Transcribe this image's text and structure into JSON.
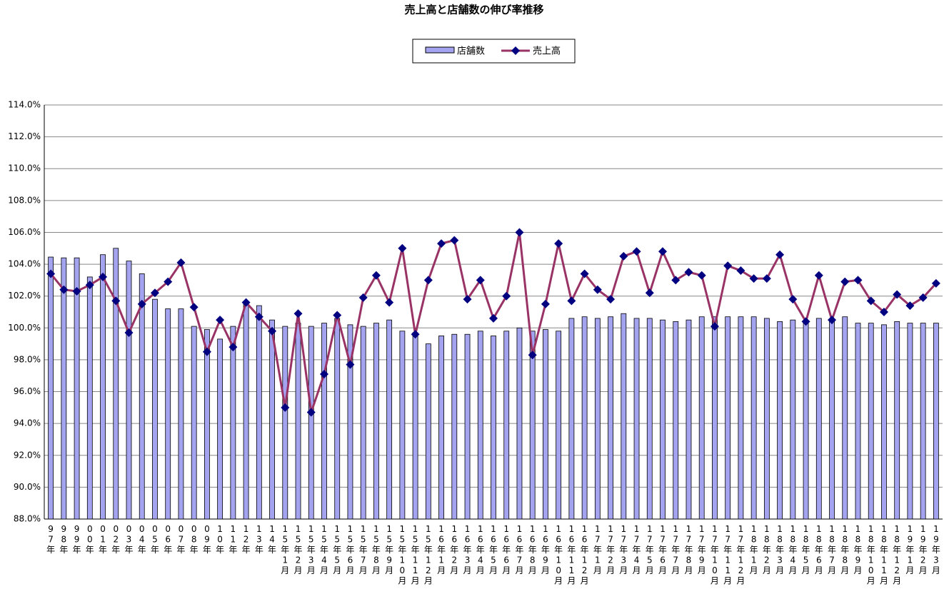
{
  "chart_data": {
    "type": "bar",
    "title": "売上高と店舗数の伸び率推移",
    "categories": [
      "97年",
      "98年",
      "99年",
      "00年",
      "01年",
      "02年",
      "03年",
      "04年",
      "05年",
      "06年",
      "07年",
      "08年",
      "09年",
      "10年",
      "11年",
      "12年",
      "13年",
      "14年",
      "15年1月",
      "15年2月",
      "15年3月",
      "15年4月",
      "15年5月",
      "15年6月",
      "15年7月",
      "15年8月",
      "15年9月",
      "15年10月",
      "15年11月",
      "15年12月",
      "16年1月",
      "16年2月",
      "16年3月",
      "16年4月",
      "16年5月",
      "16年6月",
      "16年7月",
      "16年8月",
      "16年9月",
      "16年10月",
      "16年11月",
      "16年12月",
      "17年1月",
      "17年2月",
      "17年3月",
      "17年4月",
      "17年5月",
      "17年6月",
      "17年7月",
      "17年8月",
      "17年9月",
      "17年10月",
      "17年11月",
      "17年12月",
      "18年1月",
      "18年2月",
      "18年3月",
      "18年4月",
      "18年5月",
      "18年6月",
      "18年7月",
      "18年8月",
      "18年9月",
      "18年10月",
      "18年11月",
      "18年12月",
      "19年1月",
      "19年2月",
      "19年3月"
    ],
    "series": [
      {
        "name": "店舗数",
        "type": "bar",
        "color": "#a3a3f0",
        "values": [
          104.45,
          104.4,
          104.4,
          103.2,
          104.6,
          105.0,
          104.2,
          103.4,
          101.8,
          101.2,
          101.2,
          100.1,
          99.9,
          99.3,
          100.1,
          101.6,
          101.4,
          100.5,
          100.1,
          100.3,
          100.1,
          100.3,
          100.6,
          100.2,
          100.1,
          100.3,
          100.5,
          99.8,
          99.7,
          99.0,
          99.5,
          99.6,
          99.6,
          99.8,
          99.5,
          99.8,
          100.0,
          99.8,
          99.9,
          99.8,
          100.6,
          100.7,
          100.6,
          100.7,
          100.9,
          100.6,
          100.6,
          100.5,
          100.4,
          100.5,
          100.7,
          100.7,
          100.7,
          100.7,
          100.7,
          100.6,
          100.4,
          100.5,
          100.4,
          100.6,
          100.5,
          100.7,
          100.3,
          100.3,
          100.2,
          100.4,
          100.3,
          100.3,
          100.3
        ]
      },
      {
        "name": "売上高",
        "type": "line",
        "color": "#993366",
        "marker_color": "#000080",
        "values": [
          103.4,
          102.4,
          102.3,
          102.7,
          103.2,
          101.7,
          99.7,
          101.5,
          102.2,
          102.9,
          104.1,
          101.3,
          98.5,
          100.5,
          98.8,
          101.6,
          100.7,
          99.8,
          95.0,
          100.9,
          94.7,
          97.1,
          100.8,
          97.7,
          101.9,
          103.3,
          101.6,
          105.0,
          99.6,
          103.0,
          105.3,
          105.5,
          101.8,
          103.0,
          100.6,
          102.0,
          106.0,
          98.3,
          101.5,
          105.3,
          101.7,
          103.4,
          102.4,
          101.8,
          104.5,
          104.8,
          102.2,
          104.8,
          103.0,
          103.5,
          103.3,
          100.1,
          103.9,
          103.6,
          103.1,
          103.1,
          104.6,
          101.8,
          100.4,
          103.3,
          100.5,
          102.9,
          103.0,
          101.7,
          101.0,
          102.1,
          101.4,
          101.9,
          102.8
        ]
      }
    ],
    "ylim": [
      88,
      114
    ],
    "yticks": [
      {
        "value": 88,
        "label": "88.0%"
      },
      {
        "value": 90,
        "label": "90.0%"
      },
      {
        "value": 92,
        "label": "92.0%"
      },
      {
        "value": 94,
        "label": "94.0%"
      },
      {
        "value": 96,
        "label": "96.0%"
      },
      {
        "value": 98,
        "label": "98.0%"
      },
      {
        "value": 100,
        "label": "100.0%"
      },
      {
        "value": 102,
        "label": "102.0%"
      },
      {
        "value": 104,
        "label": "104.0%"
      },
      {
        "value": 106,
        "label": "106.0%"
      },
      {
        "value": 108,
        "label": "108.0%"
      },
      {
        "value": 110,
        "label": "110.0%"
      },
      {
        "value": 112,
        "label": "112.0%"
      },
      {
        "value": 114,
        "label": "114.0%"
      }
    ],
    "grid": true,
    "legend": "top"
  }
}
